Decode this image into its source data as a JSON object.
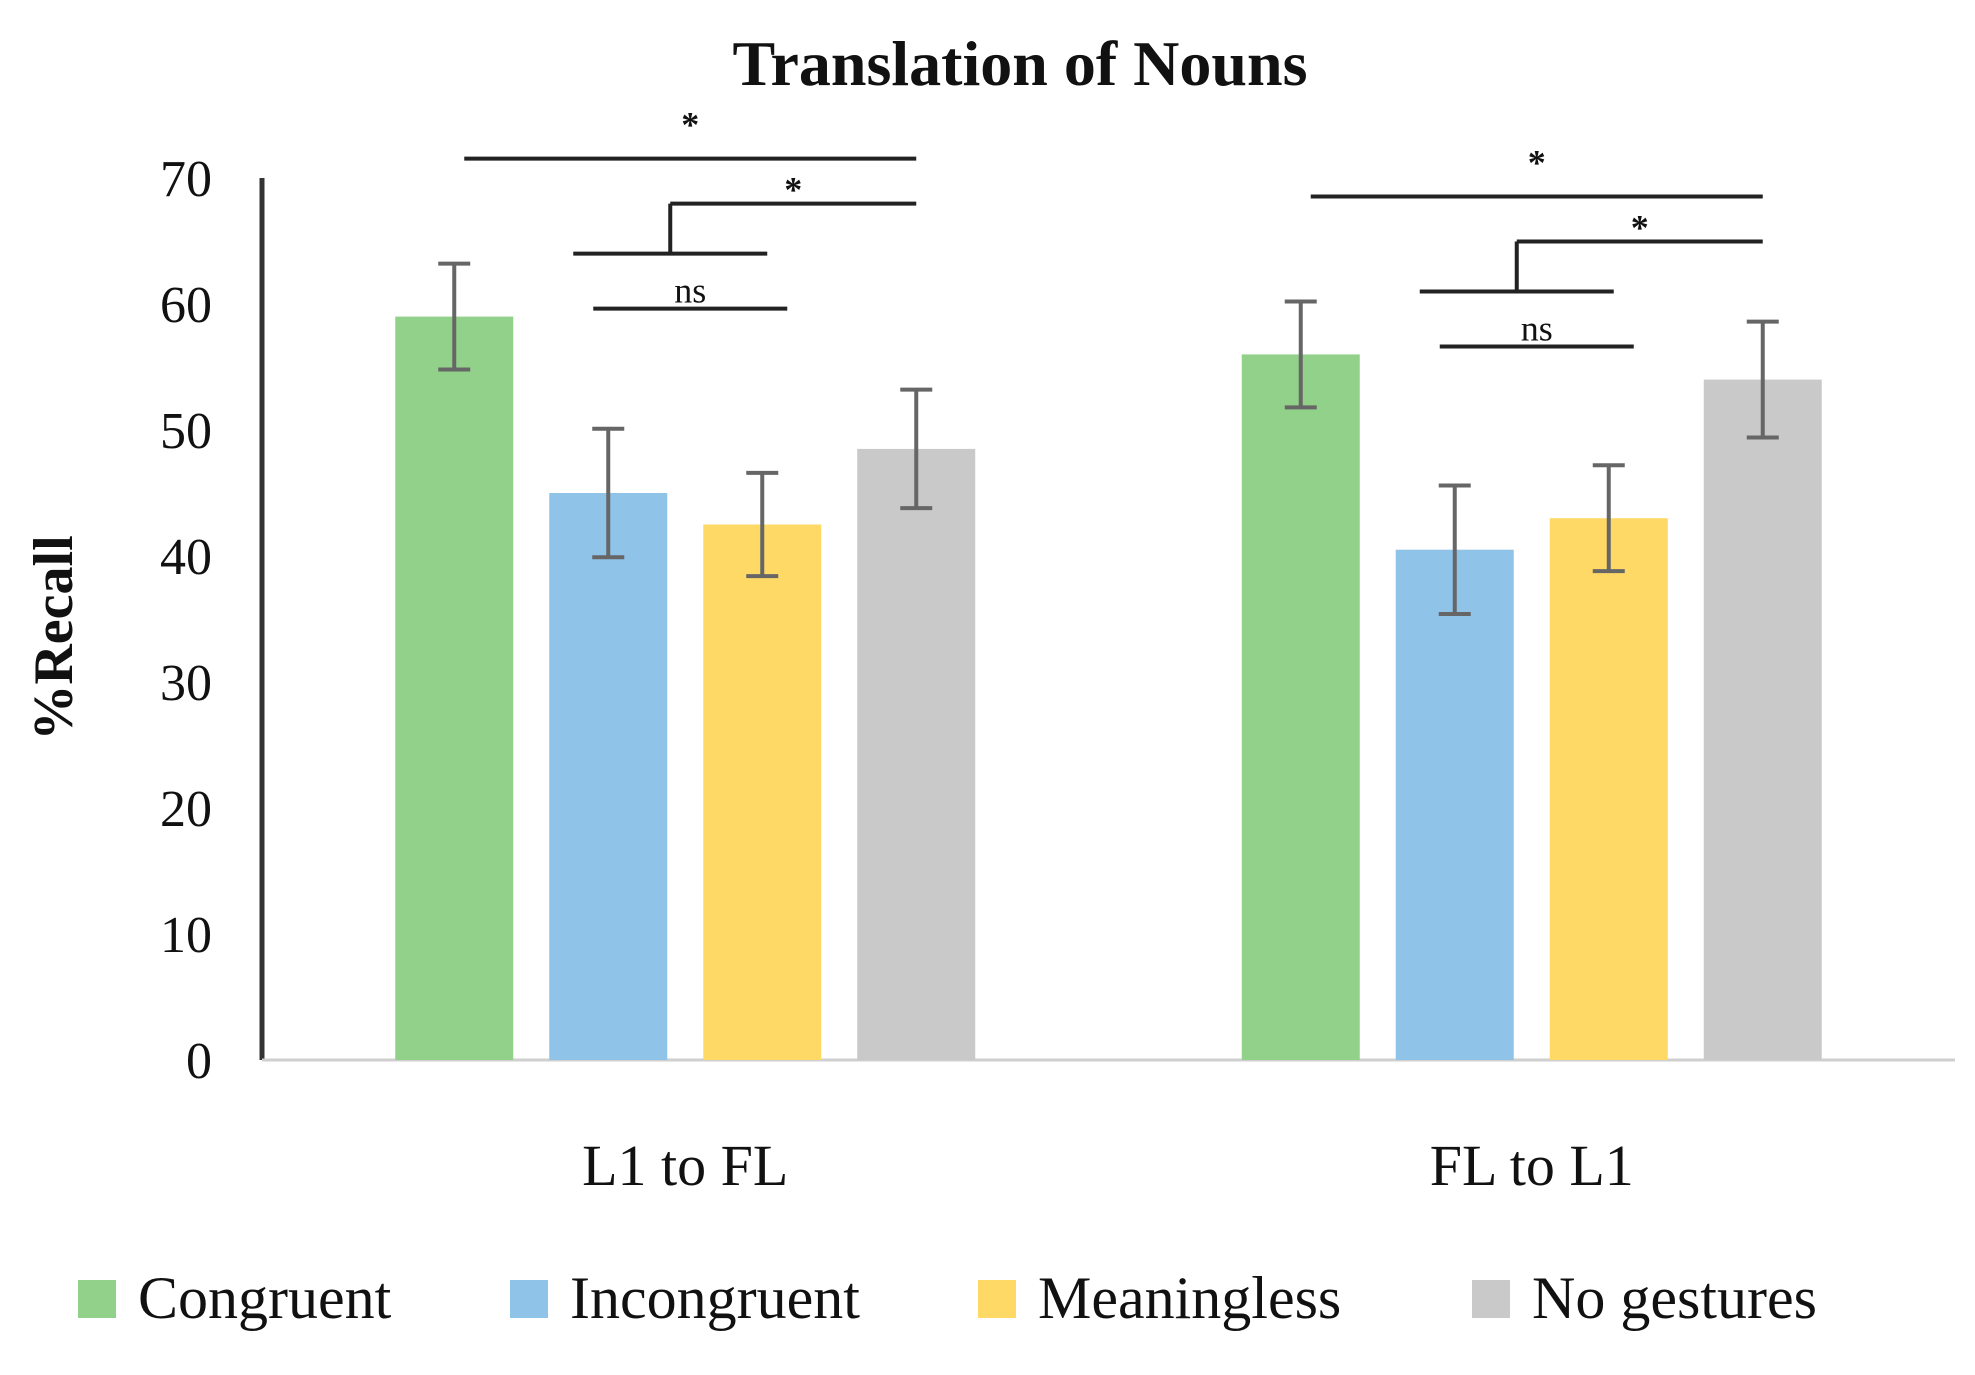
{
  "chart_data": {
    "type": "bar",
    "title": "Translation of Nouns",
    "ylabel": "%Recall",
    "xlabel": "",
    "ylim": [
      0,
      70
    ],
    "yticks": [
      0,
      10,
      20,
      30,
      40,
      50,
      60,
      70
    ],
    "categories": [
      "L1 to FL",
      "FL to L1"
    ],
    "series": [
      {
        "name": "Congruent",
        "color": "#92d18a",
        "values": [
          59,
          56
        ],
        "errors": [
          4.2,
          4.2
        ]
      },
      {
        "name": "Incongruent",
        "color": "#8fc3e8",
        "values": [
          45,
          40.5
        ],
        "errors": [
          5.1,
          5.1
        ]
      },
      {
        "name": "Meaningless",
        "color": "#ffd966",
        "values": [
          42.5,
          43
        ],
        "errors": [
          4.1,
          4.2
        ]
      },
      {
        "name": "No gestures",
        "color": "#c9c9c9",
        "values": [
          48.5,
          54
        ],
        "errors": [
          4.7,
          4.6
        ]
      }
    ],
    "legend_position": "bottom",
    "error_bars": true,
    "significance": [
      {
        "group": 0,
        "label": "*",
        "kind": "line",
        "from": 0,
        "to": 3
      },
      {
        "group": 0,
        "label": "*",
        "kind": "bracket",
        "from_pair": [
          1,
          2
        ],
        "to": 3
      },
      {
        "group": 0,
        "label": "ns",
        "kind": "line",
        "from": 1,
        "to": 2
      },
      {
        "group": 1,
        "label": "*",
        "kind": "line",
        "from": 0,
        "to": 3
      },
      {
        "group": 1,
        "label": "*",
        "kind": "bracket",
        "from_pair": [
          1,
          2
        ],
        "to": 3
      },
      {
        "group": 1,
        "label": "ns",
        "kind": "line",
        "from": 1,
        "to": 2
      }
    ]
  }
}
